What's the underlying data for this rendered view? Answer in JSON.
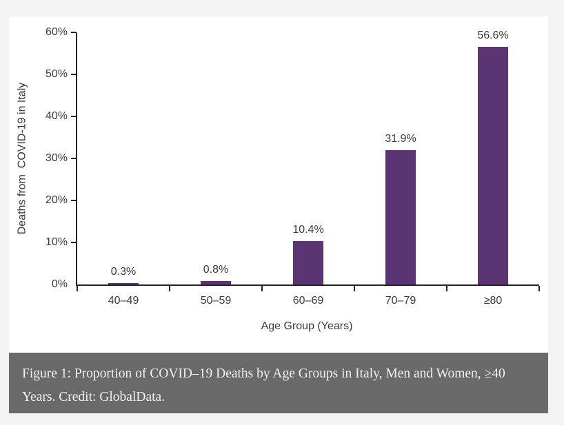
{
  "page": {
    "background": "#f4f4f4",
    "panel_background": "#ffffff"
  },
  "chart_data": {
    "type": "bar",
    "title": "",
    "categories": [
      "40–49",
      "50–59",
      "60–69",
      "70–79",
      "≥80"
    ],
    "values": [
      0.3,
      0.8,
      10.4,
      31.9,
      56.6
    ],
    "value_labels": [
      "0.3%",
      "0.8%",
      "10.4%",
      "31.9%",
      "56.6%"
    ],
    "xlabel": "Age Group (Years)",
    "ylabel": "Deaths from  COVID-19 in Italy",
    "ylim": [
      0,
      60
    ],
    "ytick_step": 10,
    "ytick_labels": [
      "0%",
      "10%",
      "20%",
      "30%",
      "40%",
      "50%",
      "60%"
    ],
    "bar_color": "#5a3473",
    "axis_color": "#222222",
    "text_color": "#3a3a3a",
    "grid": false,
    "legend": null
  },
  "caption": {
    "text": "Figure 1: Proportion of COVID–19 Deaths by Age Groups in Italy, Men and Women, ≥40 Years. Credit: GlobalData.",
    "background": "#696969",
    "color": "#f3f1ed"
  }
}
